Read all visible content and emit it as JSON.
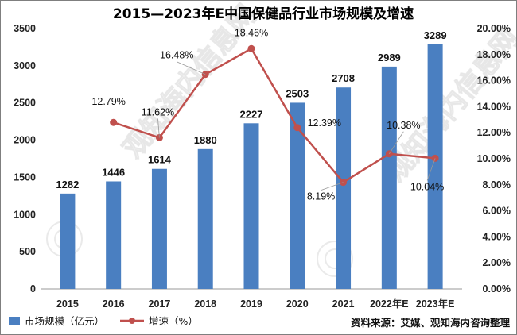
{
  "chart_data": {
    "type": "bar",
    "title": "2015—2023年E中国保健品行业市场规模及增速",
    "categories": [
      "2015",
      "2016",
      "2017",
      "2018",
      "2019",
      "2020",
      "2021",
      "2022年E",
      "2023年E"
    ],
    "series": [
      {
        "name": "市场规模（亿元）",
        "type": "bar",
        "axis": "left",
        "values": [
          1282,
          1446,
          1614,
          1880,
          2227,
          2503,
          2708,
          2989,
          3289
        ],
        "labels": [
          "1282",
          "1446",
          "1614",
          "1880",
          "2227",
          "2503",
          "2708",
          "2989",
          "3289"
        ],
        "color": "#4a7fc1"
      },
      {
        "name": "增速（%）",
        "type": "line",
        "axis": "right",
        "values": [
          null,
          12.79,
          11.62,
          16.48,
          18.46,
          12.39,
          8.19,
          10.38,
          10.04
        ],
        "labels": [
          "",
          "12.79%",
          "11.62%",
          "16.48%",
          "18.46%",
          "12.39%",
          "8.19%",
          "10.38%",
          "10.04%"
        ],
        "color": "#c0504d"
      }
    ],
    "y_left": {
      "range": [
        0,
        3500
      ],
      "ticks": [
        "0",
        "500",
        "1000",
        "1500",
        "2000",
        "2500",
        "3000",
        "3500"
      ]
    },
    "y_right": {
      "range": [
        0,
        20
      ],
      "ticks": [
        "0.00%",
        "2.00%",
        "4.00%",
        "6.00%",
        "8.00%",
        "10.00%",
        "12.00%",
        "14.00%",
        "16.00%",
        "18.00%",
        "20.00%"
      ]
    },
    "legend_position": "bottom-left",
    "grid": false
  },
  "source_note": "资料来源：艾媒、观知海内咨询整理",
  "watermark_text": "观知海内信息网"
}
